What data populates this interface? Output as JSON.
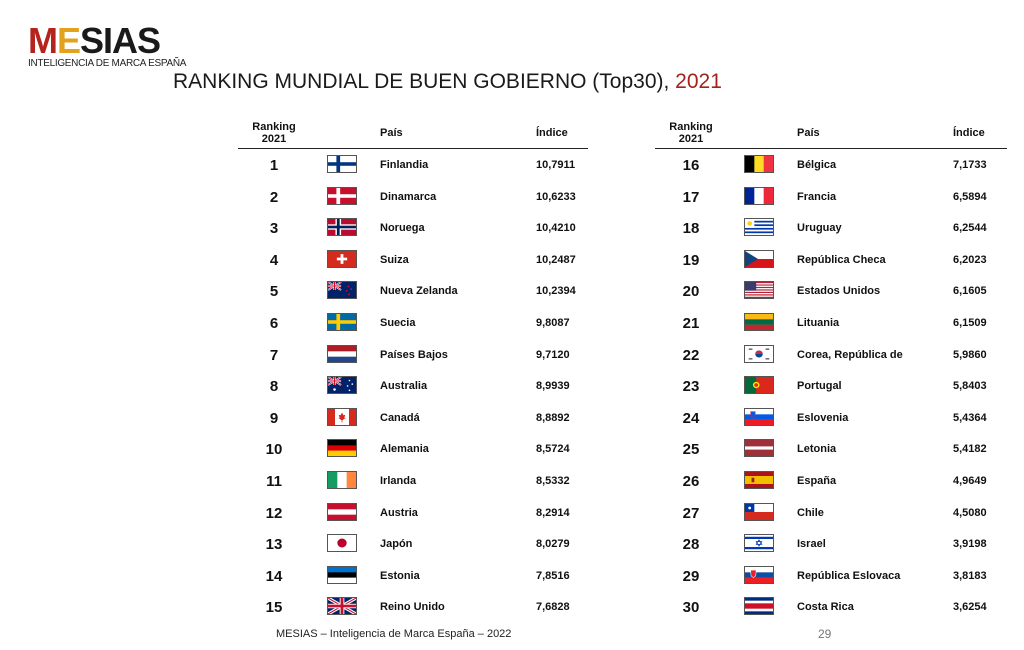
{
  "logo": {
    "word_m": "M",
    "word_e": "E",
    "word_rest": "SIAS",
    "subtitle": "INTELIGENCIA DE MARCA ESPAÑA",
    "colors": {
      "m": "#b5241c",
      "e": "#e2a21c",
      "rest": "#1a1a1a"
    }
  },
  "title": {
    "text": "RANKING MUNDIAL DE BUEN GOBIERNO (Top30),",
    "year": "2021"
  },
  "table_headers": {
    "rank_line1": "Ranking",
    "rank_line2": "2021",
    "country": "País",
    "index": "Índice"
  },
  "left_rows": [
    {
      "rank": "1",
      "country": "Finlandia",
      "index": "10,7911",
      "flag": "finland-flag"
    },
    {
      "rank": "2",
      "country": "Dinamarca",
      "index": "10,6233",
      "flag": "denmark-flag"
    },
    {
      "rank": "3",
      "country": "Noruega",
      "index": "10,4210",
      "flag": "norway-flag"
    },
    {
      "rank": "4",
      "country": "Suiza",
      "index": "10,2487",
      "flag": "switzerland-flag"
    },
    {
      "rank": "5",
      "country": "Nueva Zelanda",
      "index": "10,2394",
      "flag": "new-zealand-flag"
    },
    {
      "rank": "6",
      "country": "Suecia",
      "index": "9,8087",
      "flag": "sweden-flag"
    },
    {
      "rank": "7",
      "country": "Países Bajos",
      "index": "9,7120",
      "flag": "netherlands-flag"
    },
    {
      "rank": "8",
      "country": "Australia",
      "index": "8,9939",
      "flag": "australia-flag"
    },
    {
      "rank": "9",
      "country": "Canadá",
      "index": "8,8892",
      "flag": "canada-flag"
    },
    {
      "rank": "10",
      "country": "Alemania",
      "index": "8,5724",
      "flag": "germany-flag"
    },
    {
      "rank": "11",
      "country": "Irlanda",
      "index": "8,5332",
      "flag": "ireland-flag"
    },
    {
      "rank": "12",
      "country": "Austria",
      "index": "8,2914",
      "flag": "austria-flag"
    },
    {
      "rank": "13",
      "country": "Japón",
      "index": "8,0279",
      "flag": "japan-flag"
    },
    {
      "rank": "14",
      "country": "Estonia",
      "index": "7,8516",
      "flag": "estonia-flag"
    },
    {
      "rank": "15",
      "country": "Reino Unido",
      "index": "7,6828",
      "flag": "united-kingdom-flag"
    }
  ],
  "right_rows": [
    {
      "rank": "16",
      "country": "Bélgica",
      "index": "7,1733",
      "flag": "belgium-flag"
    },
    {
      "rank": "17",
      "country": "Francia",
      "index": "6,5894",
      "flag": "france-flag"
    },
    {
      "rank": "18",
      "country": "Uruguay",
      "index": "6,2544",
      "flag": "uruguay-flag"
    },
    {
      "rank": "19",
      "country": "República Checa",
      "index": "6,2023",
      "flag": "czech-republic-flag"
    },
    {
      "rank": "20",
      "country": "Estados Unidos",
      "index": "6,1605",
      "flag": "united-states-flag"
    },
    {
      "rank": "21",
      "country": "Lituania",
      "index": "6,1509",
      "flag": "lithuania-flag"
    },
    {
      "rank": "22",
      "country": "Corea, República de",
      "index": "5,9860",
      "flag": "south-korea-flag"
    },
    {
      "rank": "23",
      "country": "Portugal",
      "index": "5,8403",
      "flag": "portugal-flag"
    },
    {
      "rank": "24",
      "country": "Eslovenia",
      "index": "5,4364",
      "flag": "slovenia-flag"
    },
    {
      "rank": "25",
      "country": "Letonia",
      "index": "5,4182",
      "flag": "latvia-flag"
    },
    {
      "rank": "26",
      "country": "España",
      "index": "4,9649",
      "flag": "spain-flag"
    },
    {
      "rank": "27",
      "country": "Chile",
      "index": "4,5080",
      "flag": "chile-flag"
    },
    {
      "rank": "28",
      "country": "Israel",
      "index": "3,9198",
      "flag": "israel-flag"
    },
    {
      "rank": "29",
      "country": "República Eslovaca",
      "index": "3,8183",
      "flag": "slovakia-flag"
    },
    {
      "rank": "30",
      "country": "Costa Rica",
      "index": "3,6254",
      "flag": "costa-rica-flag"
    }
  ],
  "footer": {
    "text": "MESIAS – Inteligencia de Marca España – 2022",
    "page": "29"
  }
}
